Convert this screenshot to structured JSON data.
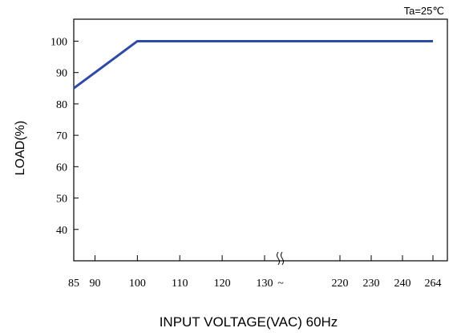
{
  "chart_data": {
    "type": "line",
    "annotation": "Ta=25℃",
    "xlabel": "INPUT VOLTAGE(VAC) 60Hz",
    "ylabel": "LOAD(%)",
    "x_tick_labels": [
      "85",
      "90",
      "100",
      "110",
      "120",
      "130",
      "~",
      "220",
      "230",
      "240",
      "264"
    ],
    "y_ticks": [
      40,
      50,
      60,
      70,
      80,
      90,
      100
    ],
    "ylim": [
      30,
      107
    ],
    "axis_break": true,
    "grid": false,
    "series": [
      {
        "x": [
          85,
          100,
          264
        ],
        "y": [
          85,
          100,
          100
        ],
        "color": "#2e4aa6"
      }
    ]
  }
}
